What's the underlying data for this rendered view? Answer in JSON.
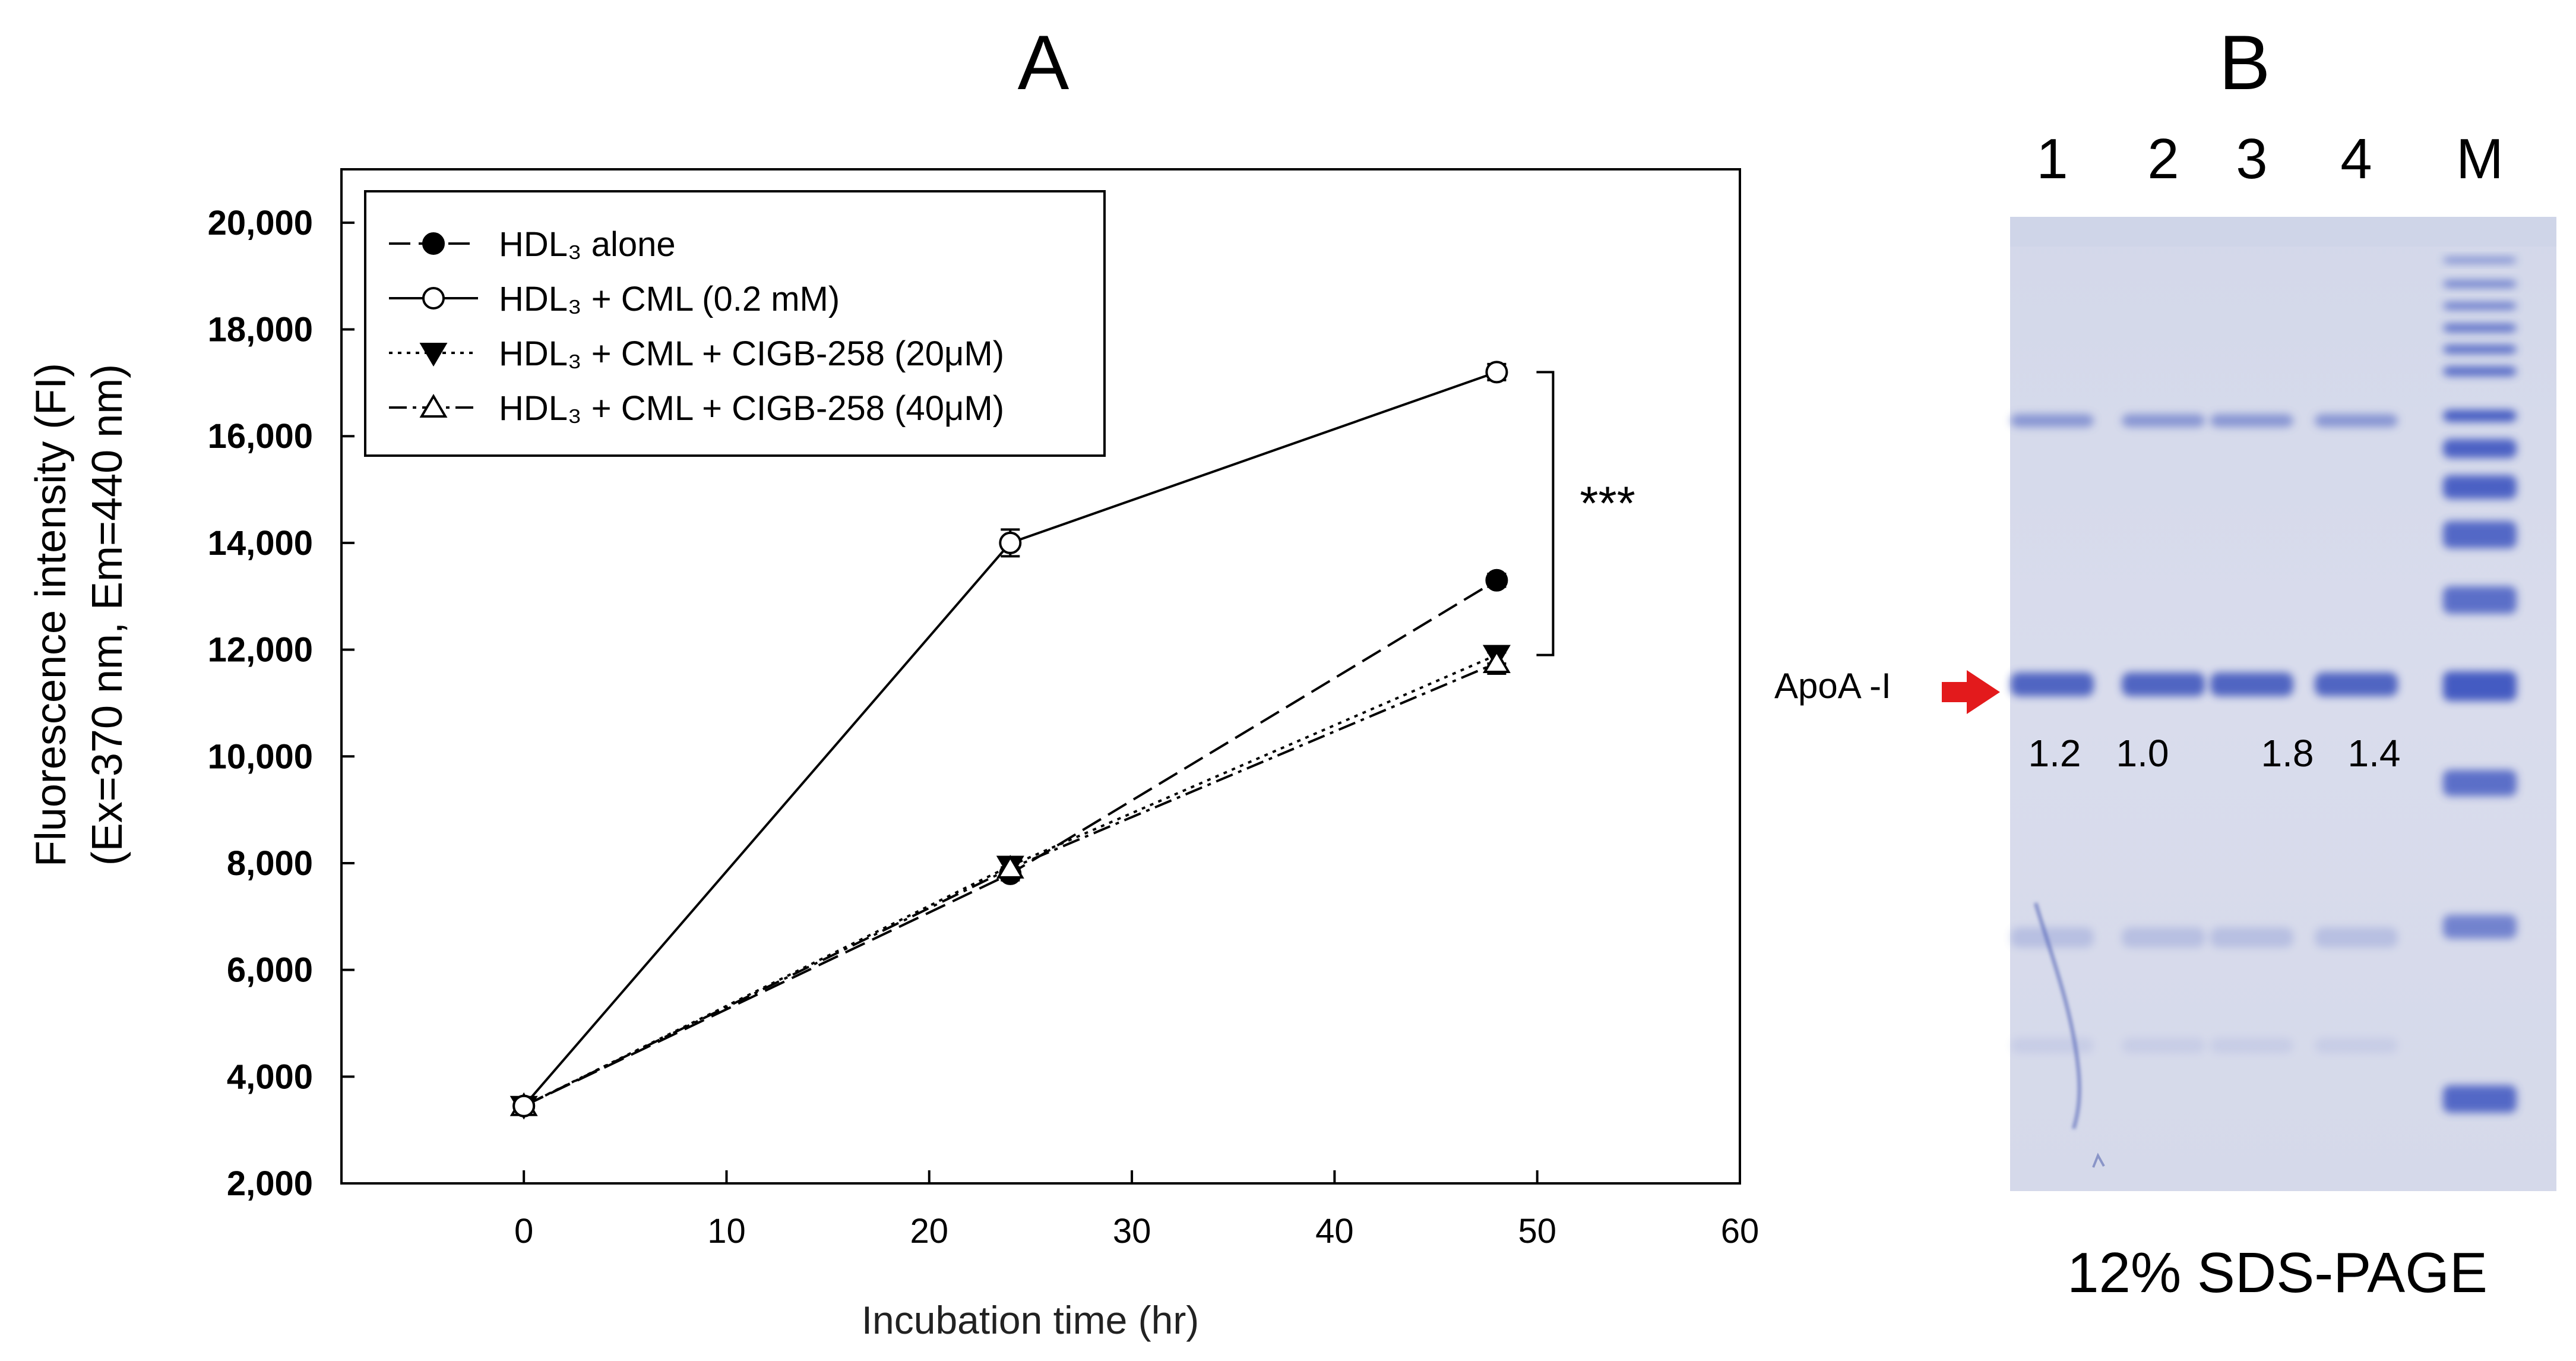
{
  "panel_a_label": "A",
  "panel_b_label": "B",
  "chart_data": {
    "type": "line",
    "title": "",
    "xlabel": "Incubation time (hr)",
    "ylabel_line1": "Fluorescence intensity (FI)",
    "ylabel_line2": "(Ex=370 nm, Em=440 nm)",
    "xlim": [
      -9,
      60
    ],
    "ylim": [
      2000,
      21000
    ],
    "xticks": [
      0,
      10,
      20,
      30,
      40,
      50,
      60
    ],
    "yticks": [
      2000,
      4000,
      6000,
      8000,
      10000,
      12000,
      14000,
      16000,
      18000,
      20000
    ],
    "ytick_labels": [
      "2,000",
      "4,000",
      "6,000",
      "8,000",
      "10,000",
      "12,000",
      "14,000",
      "16,000",
      "18,000",
      "20,000"
    ],
    "grid": false,
    "legend_position": "top-left",
    "x": [
      0,
      24,
      48
    ],
    "series": [
      {
        "name": "HDL₃ alone",
        "marker": "filled-circle",
        "dash": "long-dash",
        "values": [
          3450,
          7800,
          13300
        ],
        "errors": [
          80,
          120,
          120
        ]
      },
      {
        "name": "HDL₃ + CML (0.2 mM)",
        "marker": "open-circle",
        "dash": "solid",
        "values": [
          3450,
          14000,
          17200
        ],
        "errors": [
          80,
          250,
          150
        ]
      },
      {
        "name": "HDL₃ + CML + CIGB-258 (20μM)",
        "marker": "filled-triangle-down",
        "dash": "dotted",
        "values": [
          3450,
          7950,
          11900
        ],
        "errors": [
          80,
          120,
          160
        ]
      },
      {
        "name": "HDL₃ + CML + CIGB-258 (40μM)",
        "marker": "open-triangle-up",
        "dash": "dash-dot",
        "values": [
          3450,
          7900,
          11750
        ],
        "errors": [
          80,
          120,
          200
        ]
      }
    ],
    "significance": {
      "label": "***",
      "y_top": 17200,
      "y_bottom": 11900
    }
  },
  "gel": {
    "lane_labels": [
      "1",
      "2",
      "3",
      "4",
      "M"
    ],
    "band_label": "ApoA -I",
    "ratios": [
      "1.2",
      "1.0",
      "1.8",
      "1.4"
    ],
    "caption": "12% SDS-PAGE",
    "colors": {
      "gel_background": "#d6daea",
      "band": "#4a5fc0",
      "arrow": "#e31a1c"
    }
  }
}
